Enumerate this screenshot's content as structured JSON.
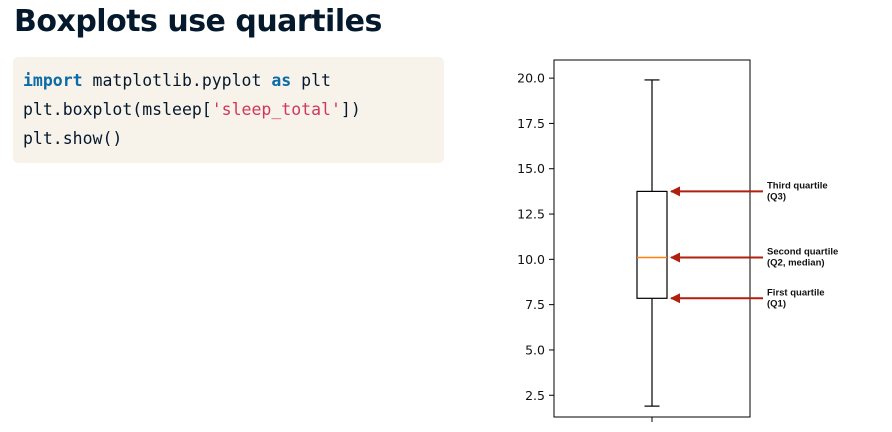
{
  "slide": {
    "title": "Boxplots use quartiles"
  },
  "code": {
    "line1": {
      "kw_import": "import",
      "module": " matplotlib.pyplot ",
      "kw_as": "as",
      "alias": " plt"
    },
    "line2": {
      "pre": "plt.boxplot(msleep[",
      "str": "'sleep_total'",
      "post": "])"
    },
    "line3": {
      "text": "plt.show()"
    }
  },
  "chart_data": {
    "type": "boxplot",
    "ylim": [
      1.3,
      21.0
    ],
    "yticks": [
      2.5,
      5.0,
      7.5,
      10.0,
      12.5,
      15.0,
      17.5,
      20.0
    ],
    "ytick_labels": [
      "2.5",
      "5.0",
      "7.5",
      "10.0",
      "12.5",
      "15.0",
      "17.5",
      "20.0"
    ],
    "box": {
      "whisker_low": 1.9,
      "q1": 7.85,
      "median": 10.1,
      "q3": 13.75,
      "whisker_high": 19.9
    },
    "colors": {
      "median": "#ff7f0e",
      "arrow": "#b11f0e",
      "box": "#000000"
    },
    "annotations": [
      {
        "target": "q3",
        "lines": [
          "Third quartile",
          "(Q3)"
        ]
      },
      {
        "target": "median",
        "lines": [
          "Second quartile",
          "(Q2, median)"
        ]
      },
      {
        "target": "q1",
        "lines": [
          "First quartile",
          "(Q1)"
        ]
      }
    ]
  }
}
